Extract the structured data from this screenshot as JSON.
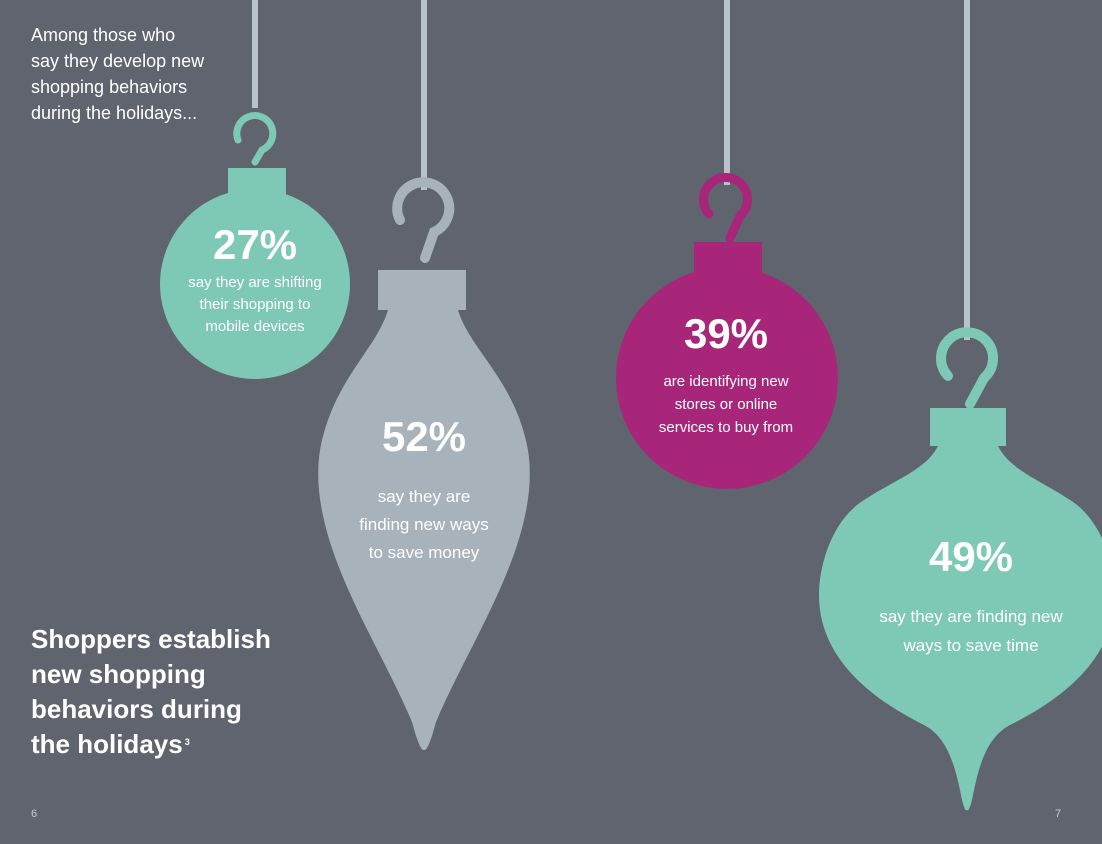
{
  "intro": {
    "lines": [
      "Among those who",
      "say they develop new",
      "shopping behaviors",
      "during the holidays..."
    ]
  },
  "headline": {
    "lines": [
      "Shoppers establish",
      "new shopping",
      "behaviors during",
      "the holidays"
    ],
    "footnote": "3"
  },
  "ornaments": [
    {
      "percent": "27%",
      "caption_lines": [
        "say they are shifting",
        "their shopping to",
        "mobile devices"
      ],
      "color": "#7ec8b6"
    },
    {
      "percent": "52%",
      "caption_lines": [
        "say they are",
        "finding new ways",
        "to save money"
      ],
      "color": "#a8b2bb"
    },
    {
      "percent": "39%",
      "caption_lines": [
        "are identifying new",
        "stores or online",
        "services to buy from"
      ],
      "color": "#a8267a"
    },
    {
      "percent": "49%",
      "caption_lines": [
        "say they are finding new",
        "ways to save time"
      ],
      "color": "#7ec8b6"
    }
  ],
  "page_numbers": {
    "left": "6",
    "right": "7"
  },
  "colors": {
    "background": "#5f646e",
    "string": "#b9c2ca",
    "teal": "#7ec8b6",
    "gray": "#a8b2bb",
    "magenta": "#a8267a"
  }
}
